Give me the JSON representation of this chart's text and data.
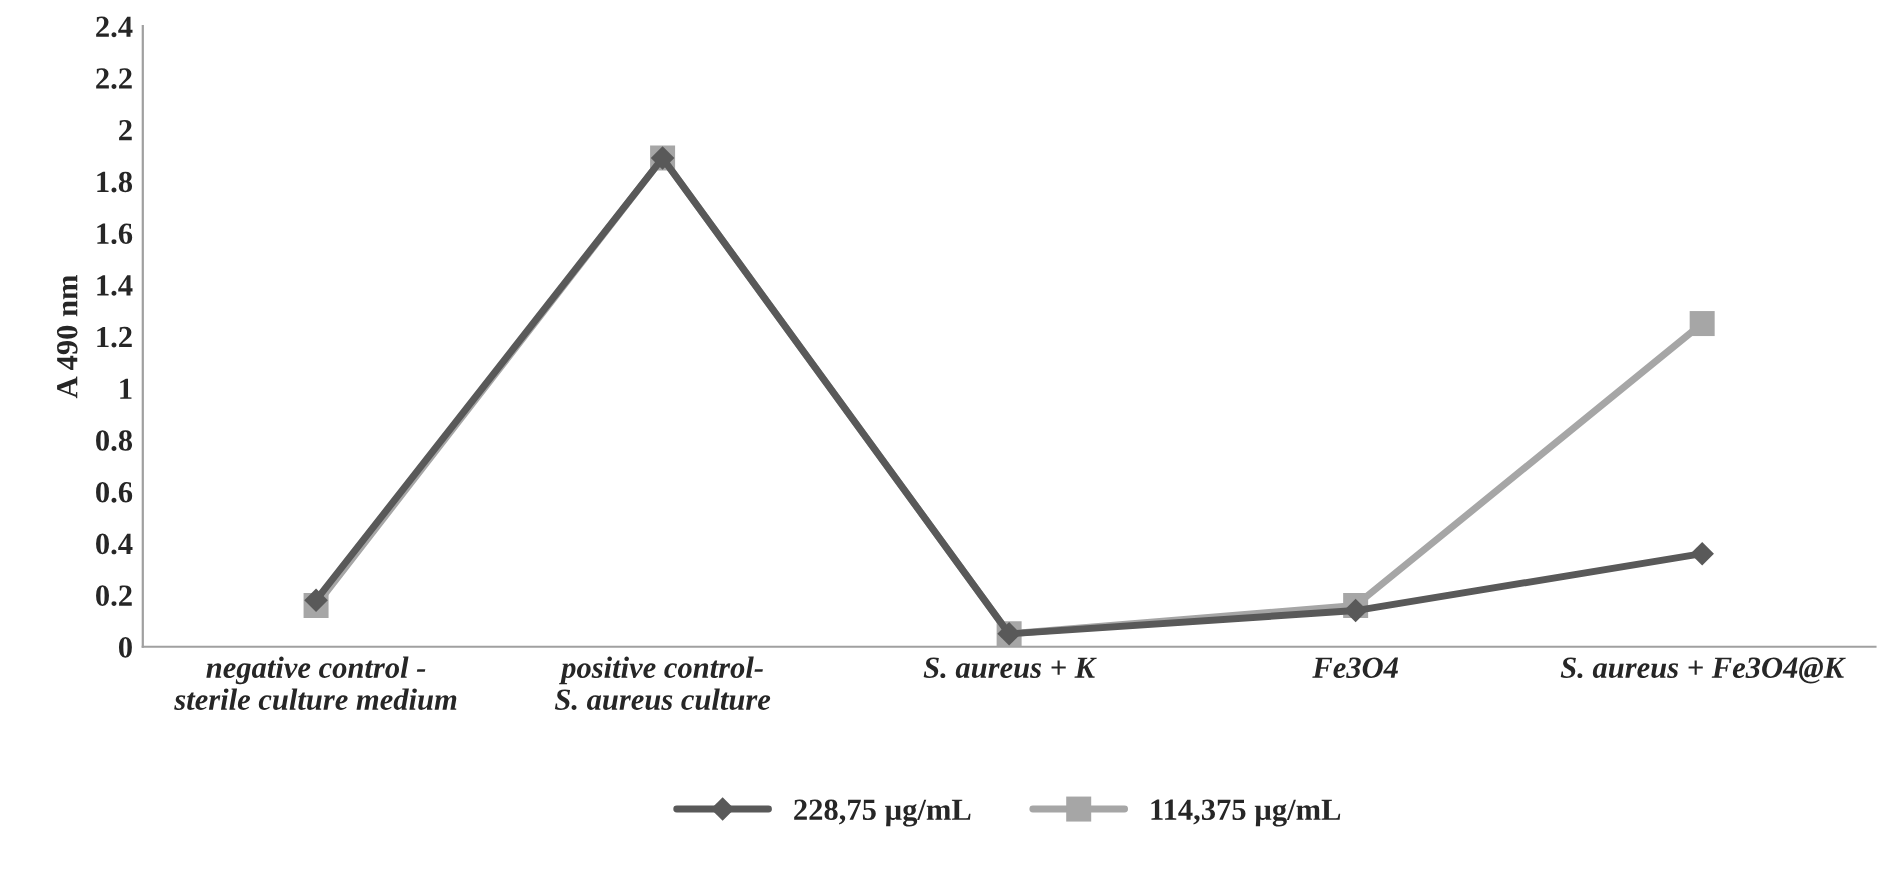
{
  "chart_data": {
    "type": "line",
    "ylabel": "A 490 nm",
    "categories": [
      "negative control -\nsterile culture medium",
      "positive control-\nS. aureus culture",
      "S. aureus + K",
      "Fe3O4",
      "S. aureus + Fe3O4@K"
    ],
    "series": [
      {
        "name": "228,75 µg/mL",
        "color": "#595959",
        "marker": "diamond",
        "values": [
          0.18,
          1.89,
          0.05,
          0.14,
          0.36
        ]
      },
      {
        "name": "114,375 µg/mL",
        "color": "#a6a6a6",
        "marker": "square",
        "values": [
          0.16,
          1.89,
          0.05,
          0.16,
          1.25
        ]
      }
    ],
    "ylim": [
      0,
      2.4
    ],
    "yticks": [
      0,
      0.2,
      0.4,
      0.6,
      0.8,
      1,
      1.2,
      1.4,
      1.6,
      1.8,
      2,
      2.2,
      2.4
    ],
    "grid": false,
    "legend": "bottom"
  }
}
